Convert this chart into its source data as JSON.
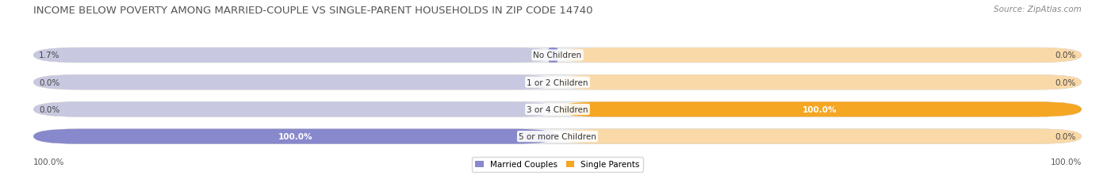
{
  "title": "INCOME BELOW POVERTY AMONG MARRIED-COUPLE VS SINGLE-PARENT HOUSEHOLDS IN ZIP CODE 14740",
  "source": "Source: ZipAtlas.com",
  "categories": [
    "No Children",
    "1 or 2 Children",
    "3 or 4 Children",
    "5 or more Children"
  ],
  "married_couples": [
    1.7,
    0.0,
    0.0,
    100.0
  ],
  "single_parents": [
    0.0,
    0.0,
    100.0,
    0.0
  ],
  "married_color": "#8888cc",
  "married_bg_color": "#c8c8e0",
  "single_color": "#f5a623",
  "single_bg_color": "#fad9a8",
  "bar_bg_color": "#efefef",
  "row_bg_color": "#f5f5f5",
  "legend_married": "Married Couples",
  "legend_single": "Single Parents",
  "title_fontsize": 9.5,
  "source_fontsize": 7.5,
  "label_fontsize": 7.5,
  "category_fontsize": 7.5,
  "max_val": 100.0
}
